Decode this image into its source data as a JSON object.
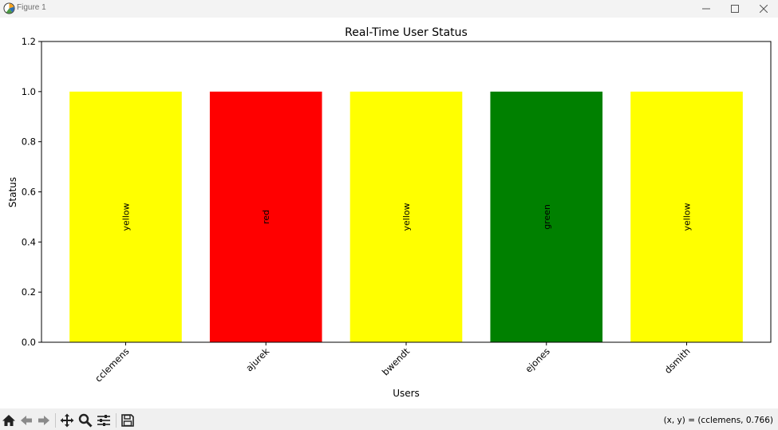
{
  "window": {
    "title": "Figure 1",
    "icons": {
      "app": "matplotlib-icon",
      "minimize": "minimize-icon",
      "maximize": "maximize-icon",
      "close": "close-icon"
    }
  },
  "toolbar": {
    "buttons": [
      {
        "name": "home-icon"
      },
      {
        "name": "back-arrow-icon"
      },
      {
        "name": "forward-arrow-icon"
      },
      {
        "name": "pan-icon"
      },
      {
        "name": "zoom-icon"
      },
      {
        "name": "configure-subplots-icon"
      },
      {
        "name": "save-icon"
      }
    ],
    "coords_text": "(x, y) = (cclemens, 0.766)"
  },
  "chart_data": {
    "type": "bar",
    "title": "Real-Time User Status",
    "xlabel": "Users",
    "ylabel": "Status",
    "categories": [
      "cclemens",
      "ajurek",
      "bwendt",
      "ejones",
      "dsmith"
    ],
    "values": [
      1.0,
      1.0,
      1.0,
      1.0,
      1.0
    ],
    "bar_labels": [
      "yellow",
      "red",
      "yellow",
      "green",
      "yellow"
    ],
    "bar_colors": [
      "#ffff00",
      "#ff0000",
      "#ffff00",
      "#008000",
      "#ffff00"
    ],
    "ylim": [
      0,
      1.2
    ],
    "yticks": [
      "0.0",
      "0.2",
      "0.4",
      "0.6",
      "0.8",
      "1.0",
      "1.2"
    ],
    "grid": false,
    "legend": "none"
  }
}
